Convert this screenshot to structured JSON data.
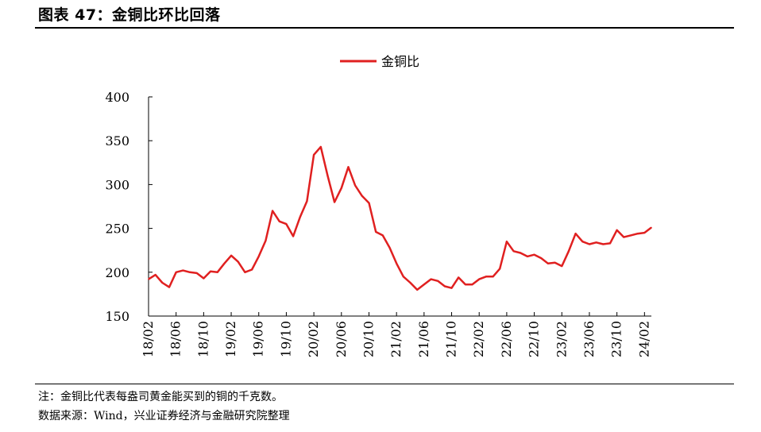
{
  "header": {
    "title": "图表 47：金铜比环比回落"
  },
  "notes": {
    "note": "注：金铜比代表每盎司黄金能买到的铜的千克数。",
    "source": "数据来源：Wind，兴业证券经济与金融研究院整理"
  },
  "colors": {
    "series": "#e02020",
    "axis": "#000000",
    "rule": "#000000"
  },
  "chart_data": {
    "type": "line",
    "title": "",
    "xlabel": "",
    "ylabel": "",
    "ylim": [
      150,
      400
    ],
    "yticks": [
      150,
      200,
      250,
      300,
      350,
      400
    ],
    "xticks": [
      "18/02",
      "18/06",
      "18/10",
      "19/02",
      "19/06",
      "19/10",
      "20/02",
      "20/06",
      "20/10",
      "21/02",
      "21/06",
      "21/10",
      "22/02",
      "22/06",
      "22/10",
      "23/02",
      "23/06",
      "23/10",
      "24/02"
    ],
    "xrange": [
      "2018-02",
      "2024-03"
    ],
    "legend_position": "top-center",
    "grid": false,
    "series": [
      {
        "name": "金铜比",
        "x": [
          "2018-02",
          "2018-03",
          "2018-04",
          "2018-05",
          "2018-06",
          "2018-07",
          "2018-08",
          "2018-09",
          "2018-10",
          "2018-11",
          "2018-12",
          "2019-01",
          "2019-02",
          "2019-03",
          "2019-04",
          "2019-05",
          "2019-06",
          "2019-07",
          "2019-08",
          "2019-09",
          "2019-10",
          "2019-11",
          "2019-12",
          "2020-01",
          "2020-02",
          "2020-03",
          "2020-04",
          "2020-05",
          "2020-06",
          "2020-07",
          "2020-08",
          "2020-09",
          "2020-10",
          "2020-11",
          "2020-12",
          "2021-01",
          "2021-02",
          "2021-03",
          "2021-04",
          "2021-05",
          "2021-06",
          "2021-07",
          "2021-08",
          "2021-09",
          "2021-10",
          "2021-11",
          "2021-12",
          "2022-01",
          "2022-02",
          "2022-03",
          "2022-04",
          "2022-05",
          "2022-06",
          "2022-07",
          "2022-08",
          "2022-09",
          "2022-10",
          "2022-11",
          "2022-12",
          "2023-01",
          "2023-02",
          "2023-03",
          "2023-04",
          "2023-05",
          "2023-06",
          "2023-07",
          "2023-08",
          "2023-09",
          "2023-10",
          "2023-11",
          "2023-12",
          "2024-01",
          "2024-02",
          "2024-03"
        ],
        "values": [
          192,
          197,
          188,
          183,
          200,
          202,
          200,
          199,
          193,
          201,
          200,
          210,
          219,
          212,
          200,
          203,
          218,
          236,
          270,
          258,
          255,
          241,
          263,
          281,
          334,
          343,
          310,
          280,
          296,
          320,
          299,
          287,
          279,
          246,
          242,
          228,
          210,
          195,
          188,
          180,
          186,
          192,
          190,
          184,
          182,
          194,
          186,
          186,
          192,
          195,
          195,
          204,
          235,
          224,
          222,
          218,
          220,
          216,
          210,
          211,
          207,
          224,
          244,
          235,
          232,
          234,
          232,
          233,
          248,
          240,
          242,
          244,
          245,
          251
        ]
      }
    ]
  }
}
